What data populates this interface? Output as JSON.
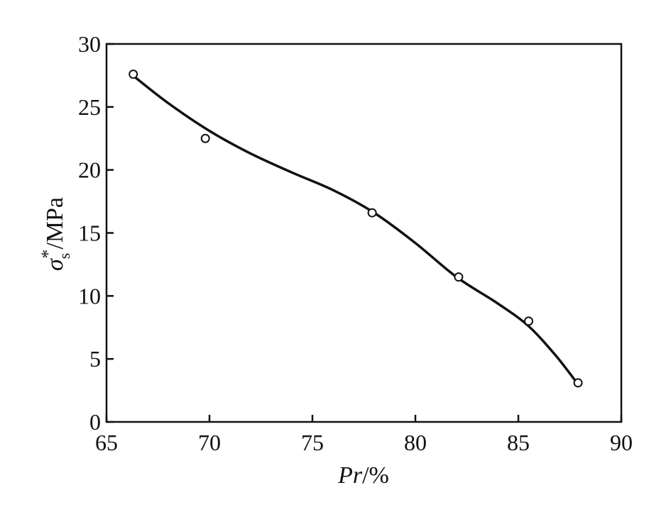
{
  "chart_data": {
    "type": "line",
    "xlabel": {
      "italic": "Pr",
      "rest": "/%"
    },
    "ylabel": {
      "sigma": "σ",
      "sub": "s",
      "sup": "*",
      "rest": "/MPa"
    },
    "xlim": [
      65,
      90
    ],
    "ylim": [
      0,
      30
    ],
    "x_ticks": [
      65,
      70,
      75,
      80,
      85,
      90
    ],
    "y_ticks": [
      0,
      5,
      10,
      15,
      20,
      25,
      30
    ],
    "grid": false,
    "series": [
      {
        "marker": "open-circle",
        "points": [
          {
            "x": 66.3,
            "y": 27.6
          },
          {
            "x": 69.8,
            "y": 22.5
          },
          {
            "x": 77.9,
            "y": 16.6
          },
          {
            "x": 82.1,
            "y": 11.5
          },
          {
            "x": 85.5,
            "y": 8.0
          },
          {
            "x": 87.9,
            "y": 3.1
          }
        ],
        "fitted_curve": [
          {
            "x": 66.2,
            "y": 27.6
          },
          {
            "x": 68.0,
            "y": 25.3
          },
          {
            "x": 70.0,
            "y": 23.1
          },
          {
            "x": 72.0,
            "y": 21.3
          },
          {
            "x": 74.0,
            "y": 19.8
          },
          {
            "x": 76.0,
            "y": 18.4
          },
          {
            "x": 78.0,
            "y": 16.6
          },
          {
            "x": 80.0,
            "y": 14.2
          },
          {
            "x": 82.0,
            "y": 11.5
          },
          {
            "x": 84.0,
            "y": 9.4
          },
          {
            "x": 85.5,
            "y": 7.6
          },
          {
            "x": 86.8,
            "y": 5.3
          },
          {
            "x": 87.8,
            "y": 3.2
          }
        ]
      }
    ]
  }
}
